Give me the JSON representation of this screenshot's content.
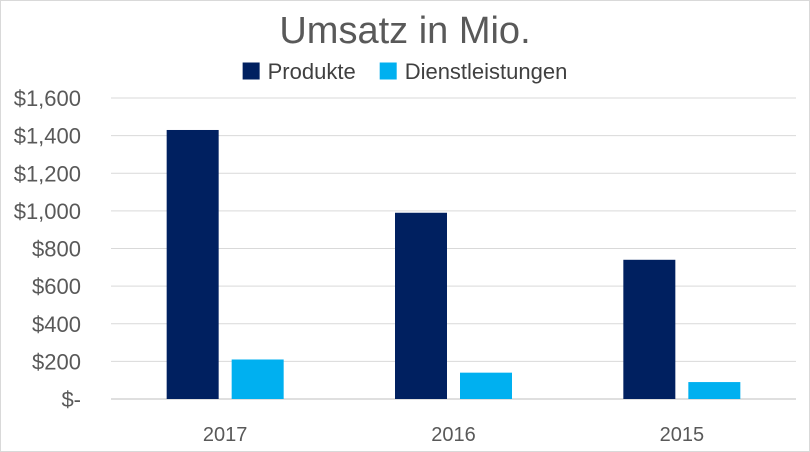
{
  "chart_data": {
    "type": "bar",
    "title": "Umsatz in Mio.",
    "xlabel": "",
    "ylabel": "",
    "categories": [
      "2017",
      "2016",
      "2015"
    ],
    "series": [
      {
        "name": "Produkte",
        "color": "#002060",
        "values": [
          1430,
          990,
          740
        ]
      },
      {
        "name": "Dienstleistungen",
        "color": "#00B0F0",
        "values": [
          210,
          140,
          90
        ]
      }
    ],
    "ylim": [
      0,
      1600
    ],
    "y_ticks": [
      {
        "value": 0,
        "label": "$-"
      },
      {
        "value": 200,
        "label": "$200"
      },
      {
        "value": 400,
        "label": "$400"
      },
      {
        "value": 600,
        "label": "$600"
      },
      {
        "value": 800,
        "label": "$800"
      },
      {
        "value": 1000,
        "label": "$1,000"
      },
      {
        "value": 1200,
        "label": "$1,200"
      },
      {
        "value": 1400,
        "label": "$1,400"
      },
      {
        "value": 1600,
        "label": "$1,600"
      }
    ],
    "grid": true,
    "legend_position": "top"
  }
}
